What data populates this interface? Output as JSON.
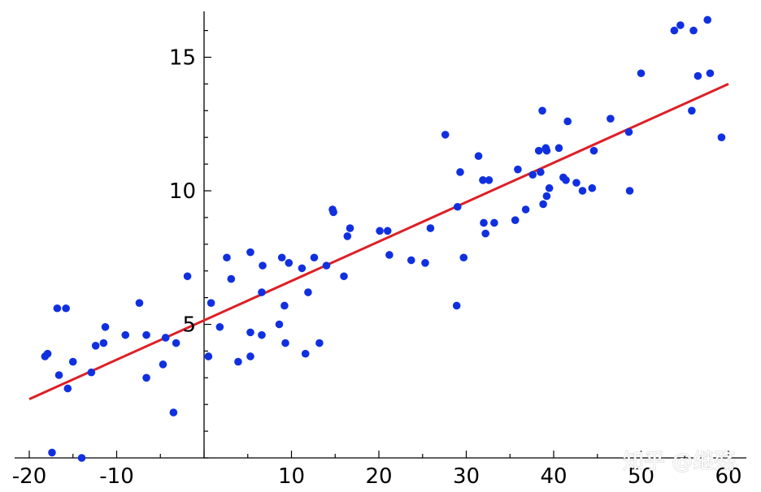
{
  "watermark": "知乎 @继殇",
  "chart_data": {
    "type": "scatter",
    "title": "",
    "xlabel": "",
    "ylabel": "",
    "xlim": [
      -20,
      60
    ],
    "ylim": [
      0,
      16.5
    ],
    "x_ticks": [
      -20,
      -10,
      10,
      20,
      30,
      40,
      50,
      60
    ],
    "x_tick_labels": [
      "-20",
      "-10",
      "10",
      "20",
      "30",
      "40",
      "50",
      "60"
    ],
    "y_ticks": [
      5,
      10,
      15
    ],
    "y_tick_labels": [
      "5",
      "10",
      "15"
    ],
    "grid": false,
    "colors": {
      "points": "#1030e0",
      "fit_line": "#dd1f26",
      "axes": "#000000"
    },
    "series": [
      {
        "type": "scatter",
        "points": [
          [
            -18.2,
            3.8
          ],
          [
            -17.9,
            3.9
          ],
          [
            -17.4,
            0.2
          ],
          [
            -16.8,
            5.6
          ],
          [
            -16.6,
            3.1
          ],
          [
            -15.8,
            5.6
          ],
          [
            -15.6,
            2.6
          ],
          [
            -15.0,
            3.6
          ],
          [
            -14.0,
            0.0
          ],
          [
            -12.9,
            3.2
          ],
          [
            -12.4,
            4.2
          ],
          [
            -11.5,
            4.3
          ],
          [
            -11.3,
            4.9
          ],
          [
            -9.0,
            4.6
          ],
          [
            -7.4,
            5.8
          ],
          [
            -6.6,
            4.6
          ],
          [
            -6.6,
            3.0
          ],
          [
            -4.7,
            3.5
          ],
          [
            -4.4,
            4.5
          ],
          [
            -3.5,
            1.7
          ],
          [
            -3.2,
            4.3
          ],
          [
            -1.9,
            6.8
          ],
          [
            0.5,
            3.8
          ],
          [
            0.8,
            5.8
          ],
          [
            1.8,
            4.9
          ],
          [
            2.6,
            7.5
          ],
          [
            3.1,
            6.7
          ],
          [
            3.9,
            3.6
          ],
          [
            5.3,
            3.8
          ],
          [
            5.3,
            4.7
          ],
          [
            5.3,
            7.7
          ],
          [
            6.6,
            4.6
          ],
          [
            6.6,
            6.2
          ],
          [
            6.7,
            7.2
          ],
          [
            8.6,
            5.0
          ],
          [
            8.9,
            7.5
          ],
          [
            9.2,
            5.7
          ],
          [
            9.3,
            4.3
          ],
          [
            9.7,
            7.3
          ],
          [
            11.2,
            7.1
          ],
          [
            11.6,
            3.9
          ],
          [
            11.9,
            6.2
          ],
          [
            12.6,
            7.5
          ],
          [
            13.2,
            4.3
          ],
          [
            14.0,
            7.2
          ],
          [
            14.7,
            9.3
          ],
          [
            14.8,
            9.2
          ],
          [
            16.0,
            6.8
          ],
          [
            16.4,
            8.3
          ],
          [
            16.7,
            8.6
          ],
          [
            20.1,
            8.5
          ],
          [
            21.0,
            8.5
          ],
          [
            21.2,
            7.6
          ],
          [
            23.7,
            7.4
          ],
          [
            25.3,
            7.3
          ],
          [
            25.9,
            8.6
          ],
          [
            27.6,
            12.1
          ],
          [
            28.9,
            5.7
          ],
          [
            29.0,
            9.4
          ],
          [
            29.3,
            10.7
          ],
          [
            29.7,
            7.5
          ],
          [
            31.4,
            11.3
          ],
          [
            31.9,
            10.4
          ],
          [
            32.0,
            8.8
          ],
          [
            32.2,
            8.4
          ],
          [
            32.6,
            10.4
          ],
          [
            33.2,
            8.8
          ],
          [
            35.6,
            8.9
          ],
          [
            35.9,
            10.8
          ],
          [
            36.8,
            9.3
          ],
          [
            37.6,
            10.6
          ],
          [
            38.3,
            11.5
          ],
          [
            38.5,
            10.7
          ],
          [
            38.7,
            13.0
          ],
          [
            38.8,
            9.5
          ],
          [
            39.1,
            11.6
          ],
          [
            39.2,
            11.5
          ],
          [
            39.2,
            9.8
          ],
          [
            39.5,
            10.1
          ],
          [
            40.6,
            11.6
          ],
          [
            41.1,
            10.5
          ],
          [
            41.4,
            10.4
          ],
          [
            41.6,
            12.6
          ],
          [
            42.6,
            10.3
          ],
          [
            43.3,
            10.0
          ],
          [
            44.4,
            10.1
          ],
          [
            44.6,
            11.5
          ],
          [
            46.5,
            12.7
          ],
          [
            48.6,
            12.2
          ],
          [
            48.7,
            10.0
          ],
          [
            50.0,
            14.4
          ],
          [
            53.8,
            16.0
          ],
          [
            54.5,
            16.2
          ],
          [
            55.8,
            13.0
          ],
          [
            56.0,
            16.0
          ],
          [
            56.5,
            14.3
          ],
          [
            57.6,
            16.4
          ],
          [
            57.9,
            14.4
          ],
          [
            59.2,
            12.0
          ]
        ]
      },
      {
        "type": "line",
        "points": [
          [
            -20,
            2.2
          ],
          [
            60,
            14.0
          ]
        ]
      }
    ]
  }
}
